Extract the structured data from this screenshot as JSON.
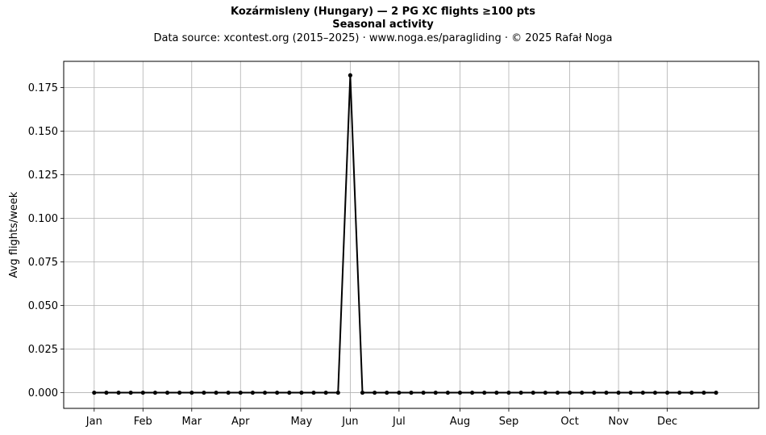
{
  "chart_data": {
    "type": "line",
    "title": "Kozármisleny (Hungary)  —  2 PG XC flights ≥100 pts",
    "title_line2": "Seasonal activity",
    "subtitle": "Data source: xcontest.org (2015–2025)  ·  www.noga.es/paragliding  ·  © 2025 Rafał Noga",
    "ylabel": "Avg flights/week",
    "xlabel": "",
    "ylim": [
      -0.009,
      0.19
    ],
    "xlim": [
      -2.5,
      54.5
    ],
    "grid": true,
    "yticks": [
      0.0,
      0.025,
      0.05,
      0.075,
      0.1,
      0.125,
      0.15,
      0.175
    ],
    "ytick_labels": [
      "0.000",
      "0.025",
      "0.050",
      "0.075",
      "0.100",
      "0.125",
      "0.150",
      "0.175"
    ],
    "month_ticks": [
      {
        "label": "Jan",
        "week": 0
      },
      {
        "label": "Feb",
        "week": 4
      },
      {
        "label": "Mar",
        "week": 8
      },
      {
        "label": "Apr",
        "week": 12
      },
      {
        "label": "May",
        "week": 17
      },
      {
        "label": "Jun",
        "week": 21
      },
      {
        "label": "Jul",
        "week": 25
      },
      {
        "label": "Aug",
        "week": 30
      },
      {
        "label": "Sep",
        "week": 34
      },
      {
        "label": "Oct",
        "week": 39
      },
      {
        "label": "Nov",
        "week": 43
      },
      {
        "label": "Dec",
        "week": 47
      }
    ],
    "series": [
      {
        "color": "#000000",
        "x": [
          0,
          1,
          2,
          3,
          4,
          5,
          6,
          7,
          8,
          9,
          10,
          11,
          12,
          13,
          14,
          15,
          16,
          17,
          18,
          19,
          20,
          21,
          22,
          23,
          24,
          25,
          26,
          27,
          28,
          29,
          30,
          31,
          32,
          33,
          34,
          35,
          36,
          37,
          38,
          39,
          40,
          41,
          42,
          43,
          44,
          45,
          46,
          47,
          48,
          49,
          50,
          51
        ],
        "values": [
          0,
          0,
          0,
          0,
          0,
          0,
          0,
          0,
          0,
          0,
          0,
          0,
          0,
          0,
          0,
          0,
          0,
          0,
          0,
          0,
          0,
          0.182,
          0,
          0,
          0,
          0,
          0,
          0,
          0,
          0,
          0,
          0,
          0,
          0,
          0,
          0,
          0,
          0,
          0,
          0,
          0,
          0,
          0,
          0,
          0,
          0,
          0,
          0,
          0,
          0,
          0,
          0
        ]
      }
    ]
  }
}
